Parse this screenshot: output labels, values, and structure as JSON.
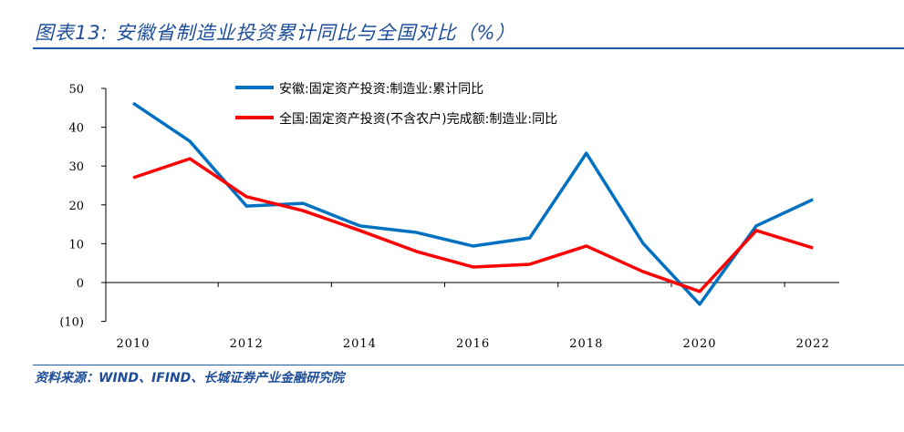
{
  "title": "图表13:  安徽省制造业投资累计同比与全国对比（%）",
  "source": "资料来源：WIND、IFIND、长城证券产业金融研究院",
  "chart_data": {
    "type": "line",
    "title": "图表13:  安徽省制造业投资累计同比与全国对比（%）",
    "x": [
      2010,
      2011,
      2012,
      2013,
      2014,
      2015,
      2016,
      2017,
      2018,
      2019,
      2020,
      2021,
      2022
    ],
    "x_tick_labels": [
      "2010",
      "2012",
      "2014",
      "2016",
      "2018",
      "2020",
      "2022"
    ],
    "y_tick_labels": [
      "50",
      "40",
      "30",
      "20",
      "10",
      "0",
      "(10)"
    ],
    "ylim": [
      -10,
      50
    ],
    "legend_position": "top-center",
    "series": [
      {
        "name": "安徽:固定资产投资:制造业:累计同比",
        "color": "#0070c0",
        "values": [
          46.2,
          36.4,
          19.7,
          20.4,
          14.6,
          12.9,
          9.4,
          11.5,
          33.3,
          10.1,
          -5.6,
          14.6,
          21.4
        ]
      },
      {
        "name": "全国:固定资产投资(不含农户)完成额:制造业:同比",
        "color": "#ff0000",
        "values": [
          27.0,
          31.9,
          22.1,
          18.5,
          13.4,
          8.0,
          4.0,
          4.7,
          9.4,
          2.8,
          -2.3,
          13.4,
          8.9
        ]
      }
    ]
  }
}
